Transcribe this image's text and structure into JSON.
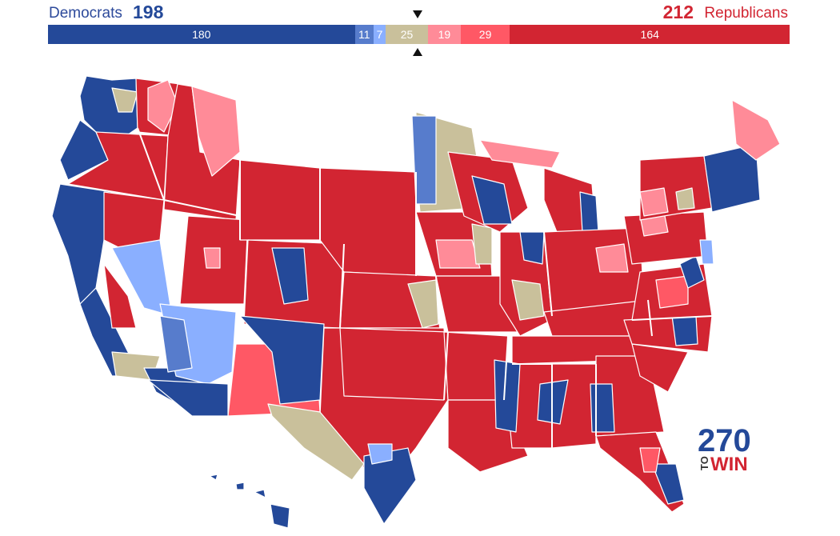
{
  "header": {
    "dem_label": "Democrats",
    "dem_total": "198",
    "rep_total": "212",
    "rep_label": "Republicans"
  },
  "bar": [
    {
      "id": "safe-dem",
      "label": "180",
      "value": 180,
      "color": "#244999"
    },
    {
      "id": "likely-dem",
      "label": "11",
      "value": 11,
      "color": "#577ccc"
    },
    {
      "id": "lean-dem",
      "label": "7",
      "value": 7,
      "color": "#8aafff"
    },
    {
      "id": "tossup",
      "label": "25",
      "value": 25,
      "color": "#c9c09b"
    },
    {
      "id": "lean-rep",
      "label": "19",
      "value": 19,
      "color": "#ff8b98"
    },
    {
      "id": "likely-rep",
      "label": "29",
      "value": 29,
      "color": "#ff5865"
    },
    {
      "id": "safe-rep",
      "label": "164",
      "value": 164,
      "color": "#d22532"
    }
  ],
  "colors": {
    "safe_dem": "#244999",
    "likely_dem": "#577ccc",
    "lean_dem": "#8aafff",
    "tossup": "#c9c09b",
    "lean_rep": "#ff8b98",
    "likely_rep": "#ff5865",
    "safe_rep": "#d22532"
  },
  "logo": {
    "number": "270",
    "to": "TO",
    "win": "WIN"
  }
}
